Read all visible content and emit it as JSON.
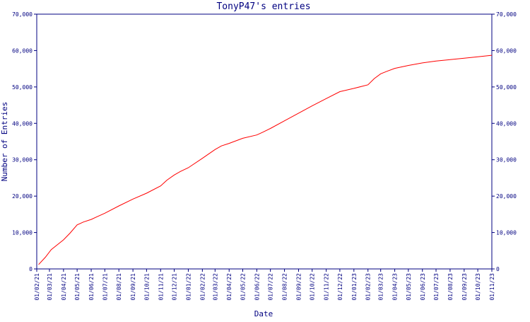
{
  "chart_data": {
    "type": "line",
    "title": "TonyP47's entries",
    "xlabel": "Date",
    "ylabel": "Number of Entries",
    "ylim": [
      0,
      70000
    ],
    "y_ticks": [
      0,
      10000,
      20000,
      30000,
      40000,
      50000,
      60000,
      70000
    ],
    "y_tick_labels": [
      "0",
      "10,000",
      "20,000",
      "30,000",
      "40,000",
      "50,000",
      "60,000",
      "70,000"
    ],
    "x_tick_labels": [
      "01/02/21",
      "01/03/21",
      "01/04/21",
      "01/05/21",
      "01/06/21",
      "01/07/21",
      "01/08/21",
      "01/09/21",
      "01/10/21",
      "01/11/21",
      "01/12/21",
      "01/01/22",
      "01/02/22",
      "01/03/22",
      "01/04/22",
      "01/05/22",
      "01/06/22",
      "01/07/22",
      "01/08/22",
      "01/09/22",
      "01/10/22",
      "01/11/22",
      "01/12/22",
      "01/01/23",
      "01/02/23",
      "01/03/23",
      "01/04/23",
      "01/05/23",
      "01/06/23",
      "01/07/23",
      "01/08/23",
      "01/09/23",
      "01/10/23",
      "01/11/23"
    ],
    "grid": false,
    "line_color": "#ff0000",
    "axis_color": "#000080",
    "series": [
      {
        "x": [
          "2021-02-05",
          "2021-02-20",
          "2021-03-05",
          "2021-03-20",
          "2021-04-01",
          "2021-04-15",
          "2021-05-01",
          "2021-05-15",
          "2021-06-01",
          "2021-06-15",
          "2021-07-01",
          "2021-08-01",
          "2021-09-01",
          "2021-10-01",
          "2021-11-01",
          "2021-11-15",
          "2021-12-01",
          "2021-12-15",
          "2022-01-01",
          "2022-02-01",
          "2022-03-01",
          "2022-03-15",
          "2022-04-01",
          "2022-05-01",
          "2022-06-01",
          "2022-06-15",
          "2022-07-01",
          "2022-08-01",
          "2022-09-01",
          "2022-10-01",
          "2022-11-01",
          "2022-12-01",
          "2023-01-01",
          "2023-02-01",
          "2023-02-15",
          "2023-03-01",
          "2023-03-15",
          "2023-04-01",
          "2023-05-01",
          "2023-06-01",
          "2023-07-01",
          "2023-08-01",
          "2023-09-01",
          "2023-10-01",
          "2023-11-01"
        ],
        "y": [
          1200,
          3200,
          5300,
          6800,
          8000,
          9800,
          12100,
          12900,
          13600,
          14400,
          15300,
          17300,
          19200,
          20800,
          22800,
          24400,
          25800,
          26800,
          27800,
          30400,
          32800,
          33800,
          34500,
          35900,
          36800,
          37600,
          38600,
          40700,
          42800,
          44800,
          46800,
          48700,
          49600,
          50600,
          52300,
          53600,
          54300,
          55100,
          55900,
          56600,
          57100,
          57500,
          57900,
          58300,
          58700
        ]
      }
    ]
  }
}
